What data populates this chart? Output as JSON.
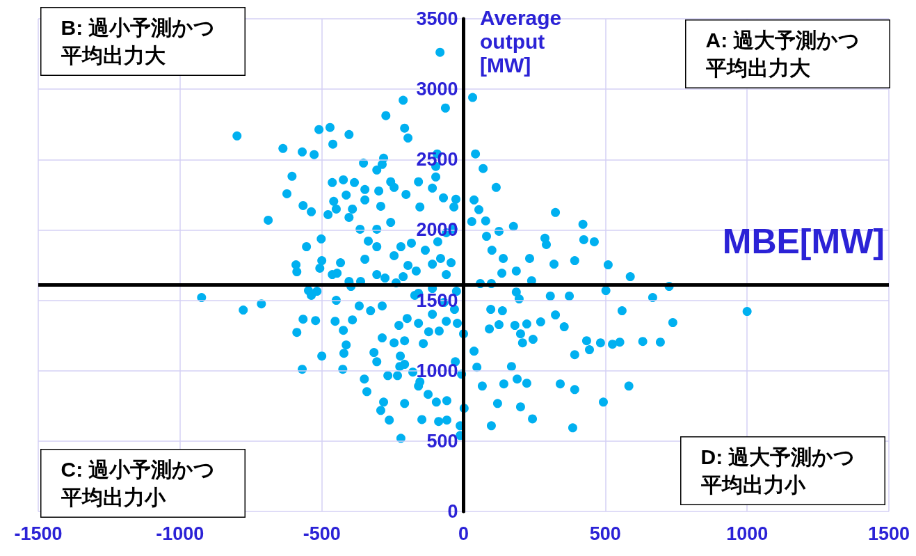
{
  "chart_data": {
    "type": "scatter",
    "xlabel": "MBE[MW]",
    "ylabel": "Average output [MW]",
    "color": "#00b0f0",
    "marker": "circle",
    "grid": true,
    "xlim": [
      -1500,
      1500
    ],
    "xticks": [
      -1500,
      -1000,
      -500,
      0,
      500,
      1000,
      1500
    ],
    "ylim": [
      0,
      3500
    ],
    "yticks": [
      0,
      500,
      1000,
      1500,
      2000,
      2500,
      3000,
      3500
    ],
    "ref_lines": [
      {
        "axis": "y",
        "value": 1610,
        "color": "#000000"
      }
    ],
    "annotations": [
      "B: 過小予測かつ平均出力大",
      "A: 過大予測かつ平均出力大",
      "C: 過小予測かつ平均出力小",
      "D: 過大予測かつ平均出力小"
    ],
    "x": [
      -924,
      -777,
      -713,
      -799,
      -689,
      -637,
      -605,
      -623,
      -569,
      -527,
      -510,
      -471,
      -404,
      -461,
      -566,
      -537,
      -591,
      -588,
      -554,
      -502,
      -500,
      -507,
      -547,
      -537,
      -517,
      -566,
      -522,
      -588,
      -569,
      -500,
      -426,
      -453,
      -424,
      -414,
      -422,
      -350,
      -341,
      -292,
      -282,
      -262,
      -223,
      -225,
      -221,
      -208,
      -154,
      -147,
      -88,
      -59,
      -12,
      -12,
      2,
      98,
      120,
      201,
      243,
      385,
      583,
      493,
      392,
      341,
      694,
      632,
      738,
      1000,
      667,
      725,
      588,
      559,
      502,
      525,
      483,
      551,
      434,
      444,
      392,
      355,
      324,
      306,
      373,
      510,
      461,
      424,
      421,
      324,
      392,
      319,
      233,
      292,
      287,
      176,
      115,
      69,
      42,
      32,
      -27,
      -34,
      37,
      54,
      29,
      78,
      81,
      125,
      100,
      140,
      186,
      135,
      59,
      98,
      240,
      186,
      196,
      96,
      137,
      125,
      91,
      181,
      201,
      208,
      223,
      272,
      245,
      169,
      189,
      223,
      142,
      66,
      47,
      37,
      0,
      -22,
      -29,
      -7,
      -59,
      -96,
      -125,
      -159,
      -179,
      -208,
      -233,
      -267,
      -306,
      -316,
      -287,
      -245,
      -208,
      -142,
      -123,
      -86,
      -61,
      -110,
      -159,
      -199,
      -228,
      -287,
      -328,
      -368,
      -392,
      -449,
      -397,
      -363,
      -306,
      -277,
      -238,
      -213,
      -167,
      -196,
      -245,
      -221,
      -184,
      -135,
      -91,
      -61,
      -37,
      -81,
      -110,
      -44,
      -61,
      -110,
      -159,
      -25,
      -32,
      -69,
      -172,
      -336,
      -306,
      -365,
      -404,
      -392,
      -449,
      -478,
      -458,
      -414,
      -463,
      -424,
      -385,
      -348,
      -348,
      -299,
      -292,
      -245,
      -203,
      -154,
      -110,
      -98,
      -159,
      -257,
      -306,
      -353,
      -282,
      -287,
      -196,
      -208,
      -213,
      -274,
      -64,
      -83,
      -93,
      -98,
      -71,
      -257,
      -306,
      -348,
      -434,
      -446,
      -404,
      -463
    ],
    "values": [
      1520,
      1431,
      1475,
      2668,
      2069,
      2579,
      2381,
      2257,
      2554,
      2535,
      2713,
      2728,
      2678,
      2609,
      2173,
      2129,
      1752,
      1703,
      1881,
      1936,
      1782,
      1728,
      1569,
      1535,
      1564,
      1366,
      1356,
      1272,
      1010,
      1104,
      1010,
      1351,
      1287,
      1183,
      1124,
      941,
      851,
      718,
      777,
      649,
      1104,
      1030,
      520,
      767,
      921,
      653,
      639,
      649,
      609,
      540,
      733,
      609,
      767,
      743,
      658,
      594,
      891,
      777,
      866,
      906,
      1203,
      1208,
      1342,
      1421,
      1520,
      1599,
      1668,
      1426,
      1569,
      1188,
      1198,
      1203,
      1213,
      1149,
      1114,
      1312,
      1396,
      1530,
      1530,
      1752,
      1916,
      1931,
      2040,
      2124,
      1782,
      1757,
      1797,
      1896,
      1941,
      2025,
      2302,
      2436,
      2540,
      2941,
      2218,
      2163,
      2213,
      2144,
      2059,
      2064,
      1955,
      1990,
      1856,
      1797,
      1708,
      1693,
      1619,
      1619,
      1639,
      1559,
      1510,
      1436,
      1426,
      1327,
      1297,
      1322,
      1262,
      1198,
      1332,
      1347,
      1223,
      1030,
      941,
      911,
      906,
      891,
      1025,
      1139,
      1262,
      1337,
      1064,
      975,
      787,
      777,
      832,
      891,
      990,
      1045,
      965,
      965,
      1064,
      1129,
      1233,
      1198,
      1213,
      1193,
      1277,
      1282,
      1351,
      1401,
      1337,
      1371,
      1322,
      1460,
      1426,
      1460,
      1361,
      1500,
      1599,
      1634,
      1683,
      1658,
      1624,
      1668,
      1708,
      1748,
      1817,
      1881,
      1906,
      1856,
      1916,
      1980,
      2005,
      1797,
      1757,
      1767,
      1683,
      1584,
      1550,
      1564,
      1436,
      1485,
      1535,
      1921,
      2005,
      2005,
      2089,
      2148,
      2148,
      2109,
      2203,
      2248,
      2337,
      2356,
      2337,
      2287,
      2213,
      2277,
      2168,
      2302,
      2252,
      2163,
      2297,
      2376,
      2342,
      2342,
      2426,
      2475,
      2510,
      2465,
      2653,
      2723,
      2921,
      2812,
      2866,
      3262,
      2540,
      2451,
      2228,
      2054,
      1881,
      1792,
      1767,
      1693,
      1634,
      1683
    ]
  }
}
